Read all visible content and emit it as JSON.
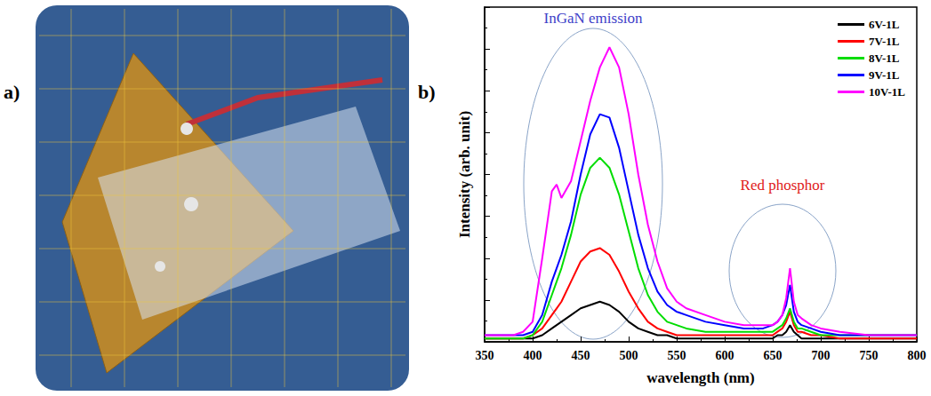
{
  "chart_data": {
    "type": "line",
    "panel_label": "b)",
    "xlabel": "wavelength (nm)",
    "ylabel": "Intensity (arb. unit)",
    "x": [
      350,
      360,
      370,
      380,
      390,
      400,
      410,
      420,
      425,
      430,
      440,
      450,
      460,
      470,
      480,
      490,
      500,
      510,
      520,
      530,
      540,
      550,
      560,
      580,
      600,
      620,
      640,
      650,
      655,
      660,
      664,
      668,
      672,
      676,
      680,
      690,
      700,
      720,
      750,
      780,
      800
    ],
    "series": [
      {
        "name": "6V-1L",
        "color": "#000000",
        "line_style": "solid",
        "values": [
          1,
          1,
          1,
          1,
          1,
          1,
          2,
          4,
          5,
          6,
          8,
          10,
          11,
          12,
          11,
          9,
          6,
          4,
          3,
          2,
          2,
          1,
          1,
          1,
          1,
          1,
          1,
          1,
          2,
          2,
          3,
          5,
          3,
          2,
          1,
          1,
          1,
          1,
          1,
          1,
          1
        ]
      },
      {
        "name": "7V-1L",
        "color": "#ff0000",
        "line_style": "solid",
        "values": [
          1,
          1,
          1,
          1,
          1,
          2,
          4,
          8,
          10,
          12,
          18,
          24,
          27,
          28,
          26,
          21,
          15,
          10,
          6,
          4,
          3,
          2,
          2,
          2,
          2,
          2,
          2,
          2,
          3,
          4,
          6,
          9,
          5,
          3,
          3,
          2,
          2,
          1,
          1,
          1,
          1
        ]
      },
      {
        "name": "8V-1L",
        "color": "#00dd00",
        "line_style": "solid",
        "values": [
          1,
          1,
          1,
          1,
          1,
          2,
          6,
          14,
          18,
          22,
          32,
          44,
          52,
          55,
          52,
          44,
          33,
          22,
          14,
          9,
          6,
          5,
          4,
          3,
          3,
          3,
          3,
          3,
          4,
          5,
          7,
          10,
          6,
          4,
          4,
          3,
          2,
          2,
          2,
          2,
          2
        ]
      },
      {
        "name": "9V-1L",
        "color": "#0000ff",
        "line_style": "solid",
        "values": [
          2,
          2,
          2,
          2,
          2,
          3,
          8,
          18,
          22,
          26,
          36,
          50,
          62,
          68,
          67,
          58,
          45,
          32,
          22,
          15,
          11,
          9,
          8,
          6,
          5,
          4,
          4,
          5,
          6,
          8,
          11,
          17,
          9,
          6,
          5,
          4,
          3,
          2,
          2,
          2,
          2
        ]
      },
      {
        "name": "10V-1L",
        "color": "#ff00ff",
        "line_style": "solid",
        "values": [
          2,
          2,
          2,
          2,
          3,
          6,
          25,
          45,
          47,
          43,
          48,
          60,
          72,
          82,
          88,
          82,
          68,
          50,
          35,
          24,
          16,
          12,
          10,
          8,
          6,
          5,
          5,
          5,
          6,
          8,
          13,
          22,
          12,
          8,
          7,
          5,
          4,
          3,
          2,
          2,
          2
        ]
      }
    ],
    "xlim": [
      350,
      800
    ],
    "xticks": [
      350,
      400,
      450,
      500,
      550,
      600,
      650,
      700,
      750,
      800
    ],
    "ylim": [
      0,
      100
    ],
    "yticks": [
      0,
      12.5,
      25,
      37.5,
      50,
      62.5,
      75,
      87.5,
      100
    ],
    "tick_labels": "x",
    "legend": "upper right",
    "annotations": [
      {
        "text": "InGaN emission",
        "color": "#4040c8"
      },
      {
        "text": "Red phosphor",
        "color": "#e02020"
      }
    ]
  },
  "photo": {
    "panel_label": "a)"
  }
}
